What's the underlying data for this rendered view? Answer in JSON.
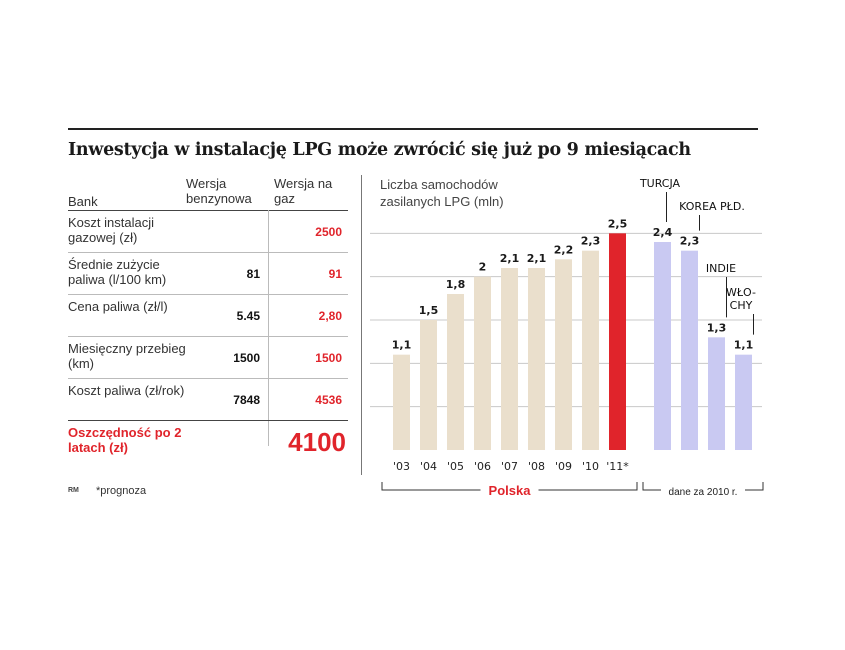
{
  "title": "Inwestycja w instalację LPG może zwrócić się już po 9 miesiącach",
  "table": {
    "col_bank": "Bank",
    "col_benzyna": "Wersja benzynowa",
    "col_gaz": "Wersja na gaz",
    "rows": [
      {
        "label": "Koszt instalacji gazowej (zł)",
        "benzyna": "",
        "gaz": "2500"
      },
      {
        "label": "Średnie zużycie paliwa (l/100 km)",
        "benzyna": "81",
        "gaz": "91"
      },
      {
        "label": "Cena paliwa (zł/l)",
        "benzyna": "5.45",
        "gaz": "2,80"
      },
      {
        "label": "Miesięczny przebieg (km)",
        "benzyna": "1500",
        "gaz": "1500"
      },
      {
        "label": "Koszt paliwa (zł/rok)",
        "benzyna": "7848",
        "gaz": "4536"
      }
    ],
    "savings_label": "Oszczędność po 2 latach (zł)",
    "savings_value": "4100"
  },
  "footer": {
    "source": "RM",
    "note": "*prognoza"
  },
  "chart_data": {
    "type": "bar",
    "ylabel": "Liczba samochodów zasilanych LPG (mln)",
    "ylim": [
      0,
      3
    ],
    "grid": true,
    "groups": [
      {
        "label": "Polska",
        "categories": [
          "'03",
          "'04",
          "'05",
          "'06",
          "'07",
          "'08",
          "'09",
          "'10",
          "'11*"
        ],
        "values": [
          1.1,
          1.5,
          1.8,
          2.0,
          2.1,
          2.1,
          2.2,
          2.3,
          2.5
        ],
        "value_labels": [
          "1,1",
          "1,5",
          "1,8",
          "2",
          "2,1",
          "2,1",
          "2,2",
          "2,3",
          "2,5"
        ],
        "colors": [
          "#eadfcc",
          "#eadfcc",
          "#eadfcc",
          "#eadfcc",
          "#eadfcc",
          "#eadfcc",
          "#eadfcc",
          "#eadfcc",
          "#e0242b"
        ]
      },
      {
        "label": "dane za 2010 r.",
        "categories": [
          "TURCJA",
          "KOREA PŁD.",
          "INDIE",
          "WŁOCHY"
        ],
        "category_lines": [
          [
            "TURCJA"
          ],
          [
            "KOREA PŁD."
          ],
          [
            "INDIE"
          ],
          [
            "WŁO-",
            "CHY"
          ]
        ],
        "values": [
          2.4,
          2.3,
          1.3,
          1.1
        ],
        "value_labels": [
          "2,4",
          "2,3",
          "1,3",
          "1,1"
        ],
        "colors": [
          "#c9c9f2",
          "#c9c9f2",
          "#c9c9f2",
          "#c9c9f2"
        ]
      }
    ]
  }
}
